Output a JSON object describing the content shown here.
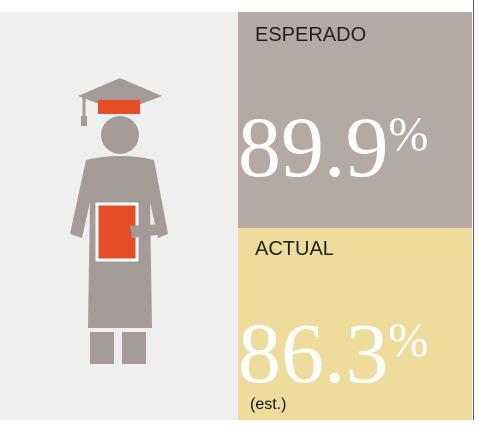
{
  "expected": {
    "label": "ESPERADO",
    "value": "89.9",
    "unit": "%"
  },
  "actual": {
    "label": "ACTUAL",
    "value": "86.3",
    "unit": "%",
    "note": "(est.)"
  }
}
